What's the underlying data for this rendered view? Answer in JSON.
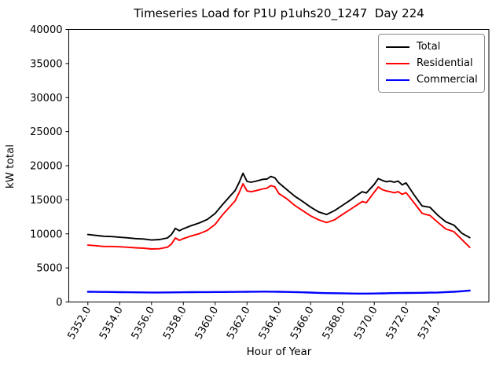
{
  "chart_data": {
    "type": "line",
    "title": "Timeseries Load for P1U p1uhs20_1247  Day 224",
    "xlabel": "Hour of Year",
    "ylabel": "kW total",
    "xlim": [
      5350.8,
      5377.2
    ],
    "ylim": [
      0,
      40000
    ],
    "grid": false,
    "legend_position": "upper right",
    "xtick_values": [
      5352,
      5354,
      5356,
      5358,
      5360,
      5362,
      5364,
      5366,
      5368,
      5370,
      5372,
      5374
    ],
    "xtick_labels": [
      "5352.0",
      "5354.0",
      "5356.0",
      "5358.0",
      "5360.0",
      "5362.0",
      "5364.0",
      "5366.0",
      "5368.0",
      "5370.0",
      "5372.0",
      "5374.0"
    ],
    "ytick_values": [
      0,
      5000,
      10000,
      15000,
      20000,
      25000,
      30000,
      35000,
      40000
    ],
    "ytick_labels": [
      "0",
      "5000",
      "10000",
      "15000",
      "20000",
      "25000",
      "30000",
      "35000",
      "40000"
    ],
    "x": [
      5352,
      5352.5,
      5353,
      5353.5,
      5354,
      5354.5,
      5355,
      5355.5,
      5356,
      5356.5,
      5357,
      5357.25,
      5357.5,
      5357.75,
      5358,
      5358.5,
      5359,
      5359.5,
      5360,
      5360.5,
      5361,
      5361.25,
      5361.5,
      5361.75,
      5362,
      5362.25,
      5362.5,
      5363,
      5363.25,
      5363.5,
      5363.75,
      5364,
      5364.5,
      5365,
      5365.5,
      5366,
      5366.5,
      5367,
      5367.5,
      5368,
      5368.5,
      5369,
      5369.25,
      5369.5,
      5370,
      5370.25,
      5370.5,
      5370.75,
      5371,
      5371.25,
      5371.5,
      5371.75,
      5372,
      5372.5,
      5373,
      5373.25,
      5373.5,
      5374,
      5374.5,
      5375,
      5375.5,
      5376
    ],
    "series": [
      {
        "name": "Total",
        "color": "#000000",
        "values": [
          9900,
          9780,
          9650,
          9600,
          9500,
          9420,
          9300,
          9240,
          9100,
          9160,
          9400,
          9900,
          10800,
          10450,
          10750,
          11200,
          11600,
          12100,
          13000,
          14400,
          15700,
          16350,
          17500,
          18890,
          17700,
          17580,
          17700,
          18000,
          18040,
          18430,
          18230,
          17470,
          16500,
          15530,
          14760,
          13920,
          13220,
          12840,
          13410,
          14180,
          14960,
          15800,
          16190,
          16000,
          17270,
          18120,
          17850,
          17650,
          17740,
          17580,
          17740,
          17200,
          17470,
          15730,
          14100,
          14000,
          13900,
          12720,
          11760,
          11290,
          10100,
          9440
        ]
      },
      {
        "name": "Residential",
        "color": "#ff0000",
        "values": [
          8350,
          8270,
          8150,
          8150,
          8100,
          8040,
          7950,
          7900,
          7780,
          7820,
          8050,
          8500,
          9400,
          9050,
          9300,
          9700,
          10020,
          10500,
          11400,
          12900,
          14180,
          14850,
          16000,
          17350,
          16300,
          16190,
          16300,
          16600,
          16700,
          17080,
          16900,
          15920,
          15150,
          14180,
          13410,
          12640,
          12060,
          11650,
          12060,
          12840,
          13600,
          14380,
          14760,
          14570,
          16110,
          16890,
          16500,
          16300,
          16190,
          16030,
          16190,
          15800,
          16050,
          14570,
          13030,
          12840,
          12700,
          11680,
          10710,
          10330,
          9180,
          8020
        ]
      },
      {
        "name": "Commercial",
        "color": "#0000ff",
        "values": [
          1500,
          1490,
          1480,
          1460,
          1440,
          1430,
          1420,
          1410,
          1400,
          1400,
          1410,
          1412,
          1415,
          1420,
          1430,
          1440,
          1450,
          1455,
          1460,
          1465,
          1470,
          1475,
          1482,
          1490,
          1500,
          1505,
          1510,
          1520,
          1520,
          1515,
          1510,
          1500,
          1480,
          1450,
          1420,
          1380,
          1340,
          1300,
          1290,
          1280,
          1250,
          1230,
          1230,
          1235,
          1250,
          1260,
          1270,
          1285,
          1300,
          1305,
          1310,
          1315,
          1320,
          1335,
          1350,
          1360,
          1370,
          1400,
          1450,
          1500,
          1580,
          1680
        ]
      }
    ]
  }
}
